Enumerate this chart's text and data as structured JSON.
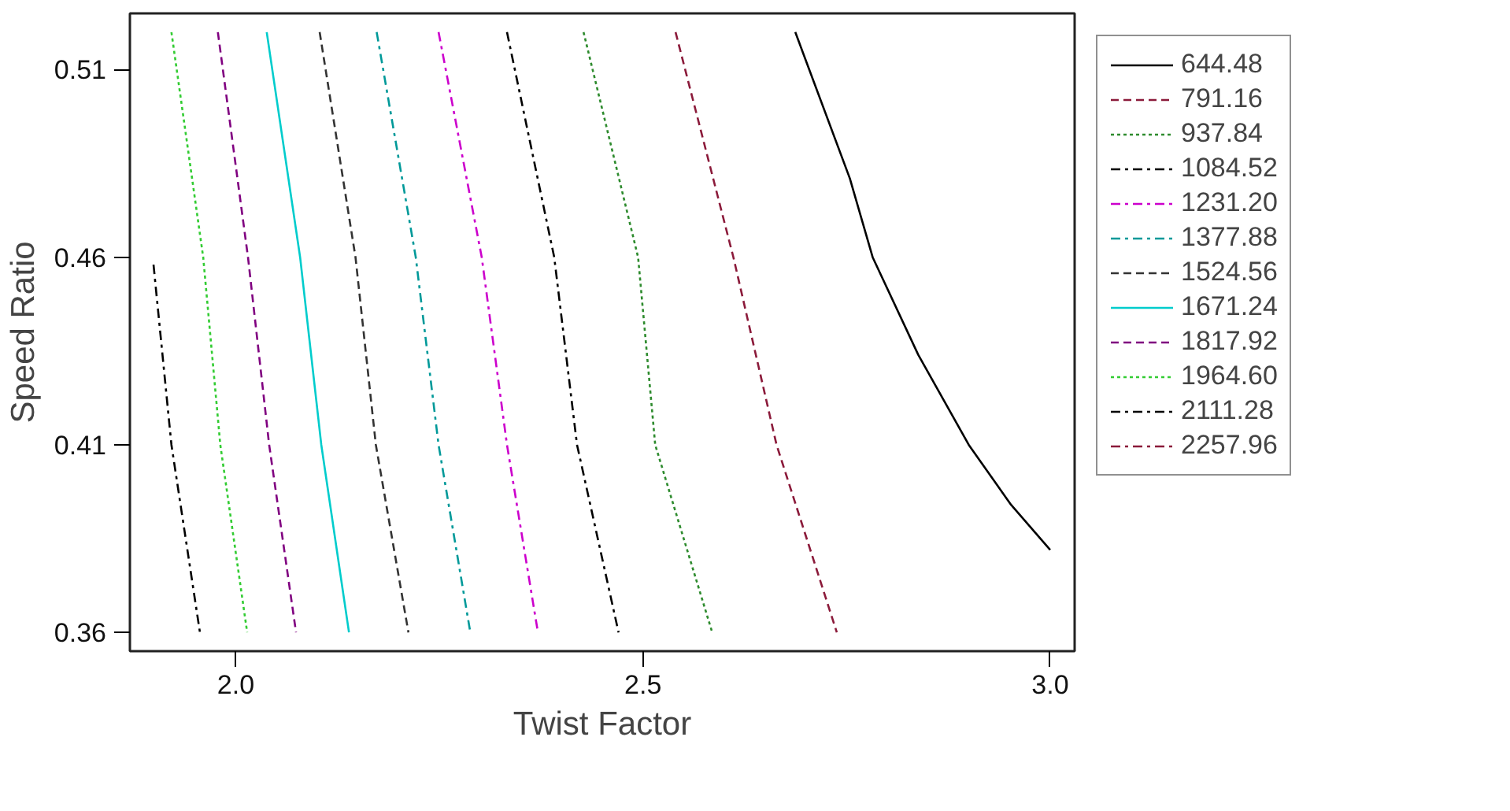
{
  "chart_data": {
    "type": "line",
    "xlabel": "Twist Factor",
    "ylabel": "Speed Ratio",
    "xlim": [
      1.87,
      3.03
    ],
    "ylim": [
      0.355,
      0.525
    ],
    "xticks": [
      {
        "value": 2,
        "label": "2.0"
      },
      2.5,
      {
        "value": 3,
        "label": "3.0"
      }
    ],
    "yticks": [
      0.36,
      0.41,
      0.46,
      0.51
    ],
    "grid": false,
    "legend": "right",
    "marker": "none",
    "series": [
      {
        "name": "644.48",
        "color": "#000000",
        "line_style": "solid",
        "x": [
          2.687,
          2.754,
          2.782,
          2.838,
          2.9,
          2.952,
          3.0
        ],
        "values": [
          0.52,
          0.481,
          0.46,
          0.434,
          0.41,
          0.394,
          0.382
        ]
      },
      {
        "name": "791.16",
        "color": "#8b1a3a",
        "line_style": "dashed",
        "x": [
          2.54,
          2.611,
          2.664,
          2.738
        ],
        "values": [
          0.52,
          0.46,
          0.41,
          0.36
        ]
      },
      {
        "name": "937.84",
        "color": "#2e8b2e",
        "line_style": "dotted",
        "x": [
          2.427,
          2.494,
          2.515,
          2.585
        ],
        "values": [
          0.52,
          0.46,
          0.41,
          0.36
        ]
      },
      {
        "name": "1084.52",
        "color": "#000000",
        "line_style": "dashdot",
        "x": [
          2.333,
          2.391,
          2.419,
          2.47
        ],
        "values": [
          0.52,
          0.46,
          0.41,
          0.36
        ]
      },
      {
        "name": "1231.20",
        "color": "#cc00cc",
        "line_style": "dashdot",
        "x": [
          2.249,
          2.302,
          2.333,
          2.371
        ],
        "values": [
          0.52,
          0.46,
          0.41,
          0.36
        ]
      },
      {
        "name": "1377.88",
        "color": "#009999",
        "line_style": "dashdot",
        "x": [
          2.173,
          2.221,
          2.249,
          2.288
        ],
        "values": [
          0.52,
          0.46,
          0.41,
          0.36
        ]
      },
      {
        "name": "1524.56",
        "color": "#333333",
        "line_style": "dashed",
        "x": [
          2.103,
          2.147,
          2.172,
          2.212
        ],
        "values": [
          0.52,
          0.46,
          0.41,
          0.36
        ]
      },
      {
        "name": "1671.24",
        "color": "#00cccc",
        "line_style": "solid",
        "x": [
          2.038,
          2.079,
          2.105,
          2.139
        ],
        "values": [
          0.52,
          0.46,
          0.41,
          0.36
        ]
      },
      {
        "name": "1817.92",
        "color": "#800080",
        "line_style": "dashed",
        "x": [
          1.978,
          2.015,
          2.041,
          2.074
        ],
        "values": [
          0.52,
          0.46,
          0.41,
          0.36
        ]
      },
      {
        "name": "1964.60",
        "color": "#33cc33",
        "line_style": "dotted",
        "x": [
          1.921,
          1.96,
          1.981,
          2.014
        ],
        "values": [
          0.52,
          0.46,
          0.41,
          0.36
        ]
      },
      {
        "name": "2111.28",
        "color": "#000000",
        "line_style": "dashdot",
        "x": [
          1.899,
          1.921,
          1.956
        ],
        "values": [
          0.458,
          0.41,
          0.36
        ]
      },
      {
        "name": "2257.96",
        "color": "#8b1a3a",
        "line_style": "dashdot"
      }
    ]
  }
}
